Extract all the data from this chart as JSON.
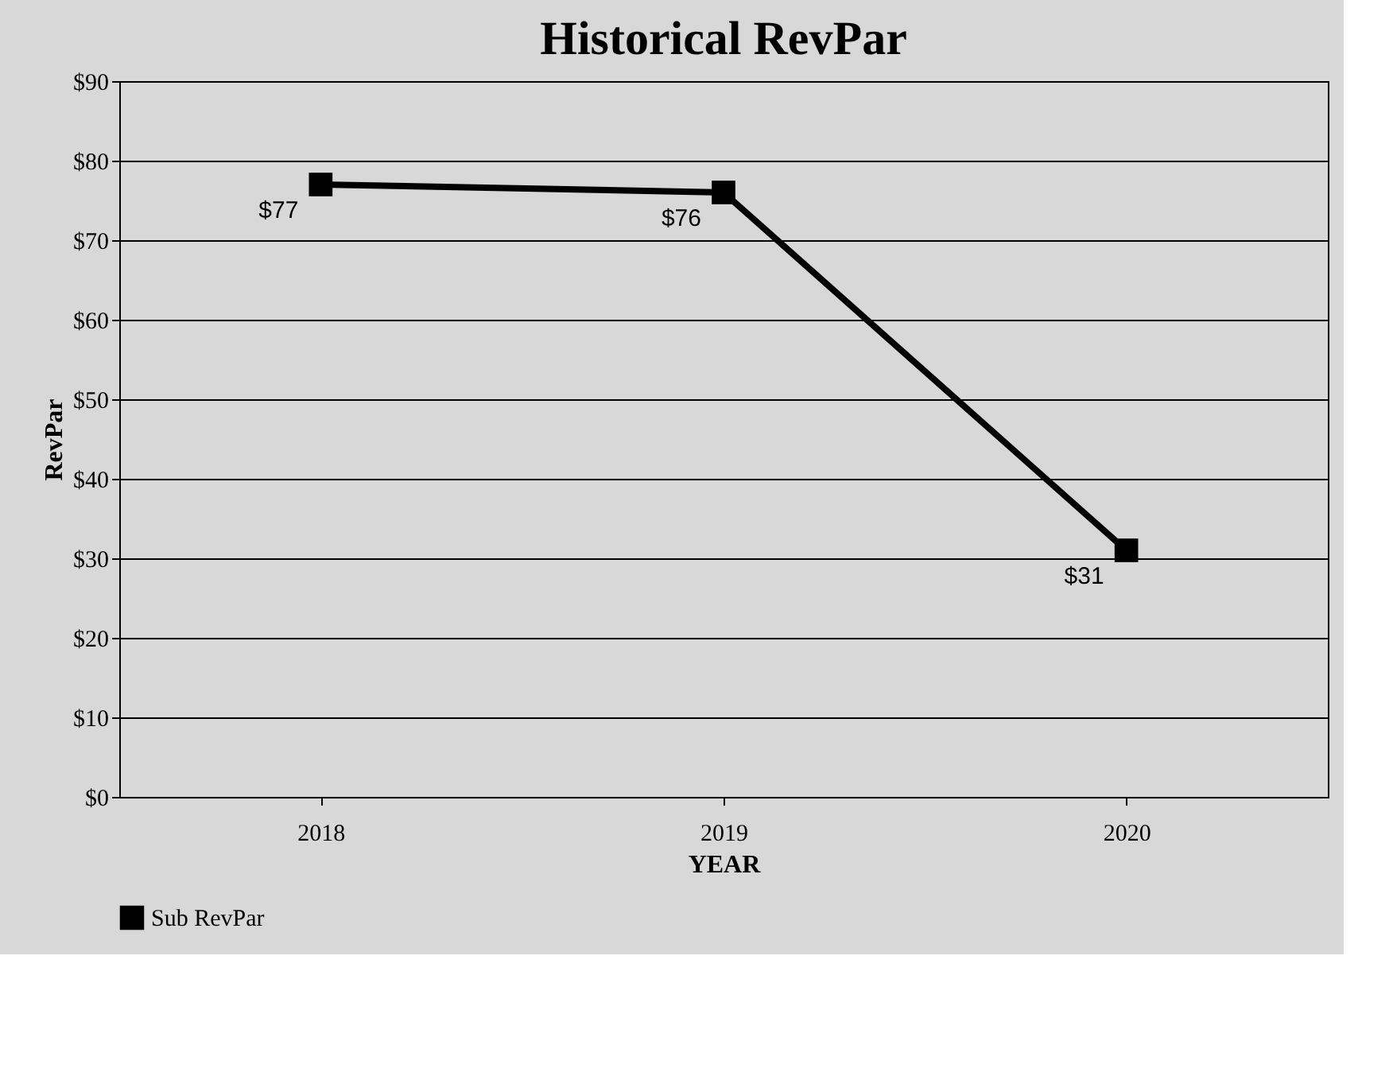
{
  "chart_data": {
    "type": "line",
    "title": "Historical RevPar",
    "xlabel": "YEAR",
    "ylabel": "RevPar",
    "categories": [
      "2018",
      "2019",
      "2020"
    ],
    "series": [
      {
        "name": "Sub RevPar",
        "color": "#000000",
        "values": [
          77,
          76,
          31
        ],
        "value_labels": [
          "$77",
          "$76",
          "$31"
        ]
      }
    ],
    "ylim": [
      0,
      90
    ],
    "yticks": [
      {
        "value": 0,
        "label": "$0"
      },
      {
        "value": 10,
        "label": "$10"
      },
      {
        "value": 20,
        "label": "$20"
      },
      {
        "value": 30,
        "label": "$30"
      },
      {
        "value": 40,
        "label": "$40"
      },
      {
        "value": 50,
        "label": "$50"
      },
      {
        "value": 60,
        "label": "$60"
      },
      {
        "value": 70,
        "label": "$70"
      },
      {
        "value": 80,
        "label": "$80"
      },
      {
        "value": 90,
        "label": "$90"
      }
    ],
    "grid": "y",
    "legend": "bottom",
    "marker": "square",
    "line_style": "solid"
  }
}
